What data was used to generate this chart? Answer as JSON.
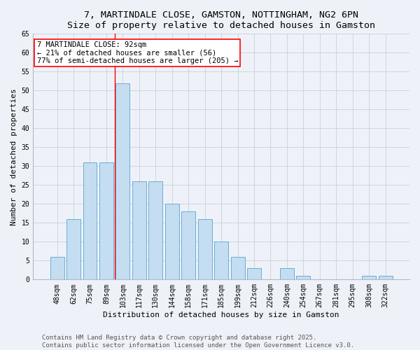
{
  "title": "7, MARTINDALE CLOSE, GAMSTON, NOTTINGHAM, NG2 6PN",
  "subtitle": "Size of property relative to detached houses in Gamston",
  "xlabel": "Distribution of detached houses by size in Gamston",
  "ylabel": "Number of detached properties",
  "categories": [
    "48sqm",
    "62sqm",
    "75sqm",
    "89sqm",
    "103sqm",
    "117sqm",
    "130sqm",
    "144sqm",
    "158sqm",
    "171sqm",
    "185sqm",
    "199sqm",
    "212sqm",
    "226sqm",
    "240sqm",
    "254sqm",
    "267sqm",
    "281sqm",
    "295sqm",
    "308sqm",
    "322sqm"
  ],
  "values": [
    6,
    16,
    31,
    31,
    52,
    26,
    26,
    20,
    18,
    16,
    10,
    6,
    3,
    0,
    3,
    1,
    0,
    0,
    0,
    1,
    1
  ],
  "bar_color": "#c5ddf0",
  "bar_edge_color": "#6aaed6",
  "vline_x_index": 3.5,
  "vline_color": "red",
  "annotation_text": "7 MARTINDALE CLOSE: 92sqm\n← 21% of detached houses are smaller (56)\n77% of semi-detached houses are larger (205) →",
  "annotation_box_color": "white",
  "annotation_box_edge_color": "red",
  "ylim": [
    0,
    65
  ],
  "yticks": [
    0,
    5,
    10,
    15,
    20,
    25,
    30,
    35,
    40,
    45,
    50,
    55,
    60,
    65
  ],
  "footer_line1": "Contains HM Land Registry data © Crown copyright and database right 2025.",
  "footer_line2": "Contains public sector information licensed under the Open Government Licence v3.0.",
  "background_color": "#eef2f8",
  "title_fontsize": 9.5,
  "axis_label_fontsize": 8,
  "tick_fontsize": 7,
  "annotation_fontsize": 7.5,
  "footer_fontsize": 6.5
}
